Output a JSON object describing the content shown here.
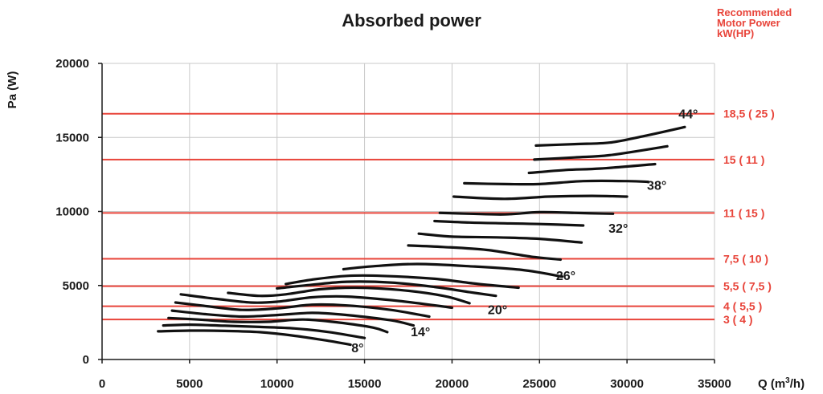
{
  "chart_data": {
    "type": "line",
    "title": "Absorbed power",
    "xlabel": "Q (m³/h)",
    "xlabel_main": "Q (m",
    "xlabel_sup": "3",
    "xlabel_end": "/h)",
    "ylabel": "Pa (W)",
    "xlim": [
      0,
      35000
    ],
    "ylim": [
      0,
      20000
    ],
    "x_ticks": [
      {
        "value": 0,
        "label": "0"
      },
      {
        "value": 5000,
        "label": "5000"
      },
      {
        "value": 10000,
        "label": "10000"
      },
      {
        "value": 15000,
        "label": "15000"
      },
      {
        "value": 20000,
        "label": "20000"
      },
      {
        "value": 25000,
        "label": "25000"
      },
      {
        "value": 30000,
        "label": "30000"
      },
      {
        "value": 35000,
        "label": "35000"
      }
    ],
    "y_ticks": [
      {
        "value": 0,
        "label": "0"
      },
      {
        "value": 5000,
        "label": "5000"
      },
      {
        "value": 10000,
        "label": "10000"
      },
      {
        "value": 15000,
        "label": "15000"
      },
      {
        "value": 20000,
        "label": "20000"
      }
    ],
    "grid": true,
    "motor_power_title": [
      "Recommended",
      "Motor Power",
      "kW(HP)"
    ],
    "motor_lines": [
      {
        "label": "18,5 ( 25 )",
        "y": 16600
      },
      {
        "label": "15 ( 11 )",
        "y": 13500
      },
      {
        "label": "11 ( 15 )",
        "y": 9900
      },
      {
        "label": "7,5 ( 10 )",
        "y": 6800
      },
      {
        "label": "5,5 ( 7,5 )",
        "y": 4950
      },
      {
        "label": "4 ( 5,5 )",
        "y": 3600
      },
      {
        "label": "3 ( 4 )",
        "y": 2700
      }
    ],
    "angle_labels": [
      {
        "label": "8°",
        "x": 14600,
        "y": 800
      },
      {
        "label": "14°",
        "x": 18200,
        "y": 1900
      },
      {
        "label": "20°",
        "x": 22600,
        "y": 3400
      },
      {
        "label": "26°",
        "x": 26500,
        "y": 5700
      },
      {
        "label": "32°",
        "x": 29500,
        "y": 8900
      },
      {
        "label": "38°",
        "x": 31700,
        "y": 11800
      },
      {
        "label": "44°",
        "x": 33500,
        "y": 16600
      }
    ],
    "series": [
      {
        "points": [
          [
            3200,
            1900
          ],
          [
            5000,
            1950
          ],
          [
            7000,
            1930
          ],
          [
            9000,
            1850
          ],
          [
            11000,
            1600
          ],
          [
            13000,
            1250
          ],
          [
            14200,
            1000
          ]
        ]
      },
      {
        "points": [
          [
            3500,
            2300
          ],
          [
            5000,
            2350
          ],
          [
            7000,
            2280
          ],
          [
            9000,
            2200
          ],
          [
            11000,
            2100
          ],
          [
            13000,
            1850
          ],
          [
            15000,
            1450
          ]
        ]
      },
      {
        "points": [
          [
            3800,
            2800
          ],
          [
            5500,
            2700
          ],
          [
            7500,
            2550
          ],
          [
            9500,
            2550
          ],
          [
            11500,
            2700
          ],
          [
            13500,
            2500
          ],
          [
            15500,
            2150
          ],
          [
            16300,
            1850
          ]
        ]
      },
      {
        "points": [
          [
            4000,
            3300
          ],
          [
            6000,
            3050
          ],
          [
            8000,
            2900
          ],
          [
            10000,
            3000
          ],
          [
            12000,
            3150
          ],
          [
            14000,
            3000
          ],
          [
            16500,
            2650
          ],
          [
            17800,
            2300
          ]
        ]
      },
      {
        "points": [
          [
            4200,
            3850
          ],
          [
            6000,
            3600
          ],
          [
            8000,
            3350
          ],
          [
            10000,
            3450
          ],
          [
            12000,
            3700
          ],
          [
            14000,
            3650
          ],
          [
            16500,
            3350
          ],
          [
            18700,
            2900
          ]
        ]
      },
      {
        "points": [
          [
            4500,
            4400
          ],
          [
            6500,
            4100
          ],
          [
            8500,
            3850
          ],
          [
            10000,
            3900
          ],
          [
            12000,
            4200
          ],
          [
            14000,
            4250
          ],
          [
            17000,
            3950
          ],
          [
            20000,
            3500
          ]
        ]
      },
      {
        "points": [
          [
            7200,
            4500
          ],
          [
            9000,
            4300
          ],
          [
            10500,
            4400
          ],
          [
            12500,
            4750
          ],
          [
            14500,
            4850
          ],
          [
            17000,
            4700
          ],
          [
            19500,
            4300
          ],
          [
            21000,
            3800
          ]
        ]
      },
      {
        "points": [
          [
            10000,
            4800
          ],
          [
            12000,
            5050
          ],
          [
            14000,
            5250
          ],
          [
            16500,
            5200
          ],
          [
            19000,
            4900
          ],
          [
            21000,
            4550
          ],
          [
            22500,
            4300
          ]
        ]
      },
      {
        "points": [
          [
            10500,
            5100
          ],
          [
            12000,
            5400
          ],
          [
            14000,
            5650
          ],
          [
            16000,
            5650
          ],
          [
            19000,
            5450
          ],
          [
            21500,
            5100
          ],
          [
            23800,
            4850
          ]
        ]
      },
      {
        "points": [
          [
            13800,
            6100
          ],
          [
            15500,
            6300
          ],
          [
            18000,
            6450
          ],
          [
            21000,
            6300
          ],
          [
            24000,
            6050
          ],
          [
            26300,
            5600
          ]
        ]
      },
      {
        "points": [
          [
            17500,
            7700
          ],
          [
            19500,
            7600
          ],
          [
            22000,
            7400
          ],
          [
            24500,
            6950
          ],
          [
            26200,
            6750
          ]
        ]
      },
      {
        "points": [
          [
            18100,
            8500
          ],
          [
            20000,
            8300
          ],
          [
            22500,
            8250
          ],
          [
            25000,
            8150
          ],
          [
            27400,
            7900
          ]
        ]
      },
      {
        "points": [
          [
            19000,
            9350
          ],
          [
            21000,
            9250
          ],
          [
            23000,
            9200
          ],
          [
            25000,
            9150
          ],
          [
            27500,
            9050
          ]
        ]
      },
      {
        "points": [
          [
            19300,
            9900
          ],
          [
            21000,
            9850
          ],
          [
            23000,
            9800
          ],
          [
            25000,
            9950
          ],
          [
            27000,
            9900
          ],
          [
            29200,
            9850
          ]
        ]
      },
      {
        "points": [
          [
            20100,
            11000
          ],
          [
            23000,
            10850
          ],
          [
            25500,
            11000
          ],
          [
            28000,
            11050
          ],
          [
            30000,
            11000
          ]
        ]
      },
      {
        "points": [
          [
            20700,
            11900
          ],
          [
            23000,
            11850
          ],
          [
            25000,
            11850
          ],
          [
            27500,
            12050
          ],
          [
            30000,
            12050
          ],
          [
            31200,
            12000
          ]
        ]
      },
      {
        "points": [
          [
            24400,
            12600
          ],
          [
            26500,
            12800
          ],
          [
            28500,
            12900
          ],
          [
            31600,
            13200
          ]
        ]
      },
      {
        "points": [
          [
            24700,
            13500
          ],
          [
            27000,
            13650
          ],
          [
            29000,
            13800
          ],
          [
            32300,
            14400
          ]
        ]
      },
      {
        "points": [
          [
            24800,
            14450
          ],
          [
            27000,
            14550
          ],
          [
            29000,
            14650
          ],
          [
            31000,
            15100
          ],
          [
            33300,
            15700
          ]
        ]
      }
    ]
  }
}
